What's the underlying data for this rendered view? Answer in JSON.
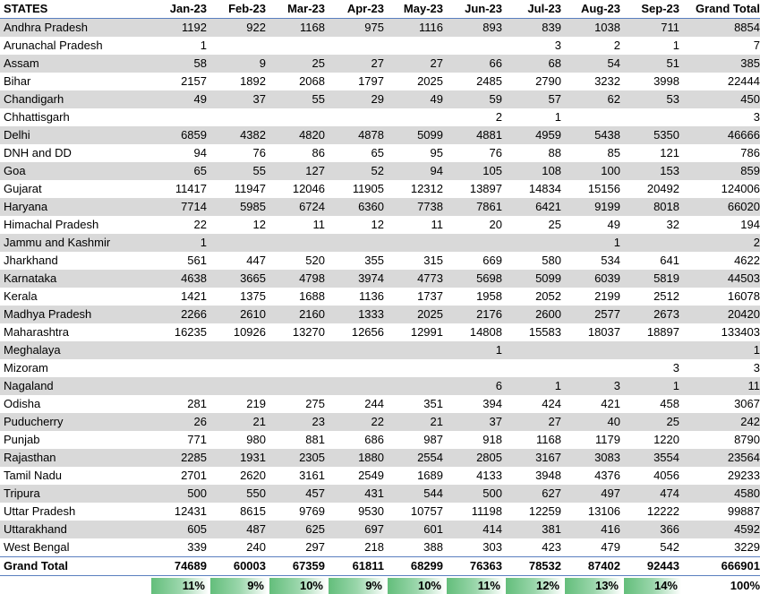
{
  "headers": [
    "STATES",
    "Jan-23",
    "Feb-23",
    "Mar-23",
    "Apr-23",
    "May-23",
    "Jun-23",
    "Jul-23",
    "Aug-23",
    "Sep-23",
    "Grand Total"
  ],
  "rows": [
    [
      "Andhra Pradesh",
      "1192",
      "922",
      "1168",
      "975",
      "1116",
      "893",
      "839",
      "1038",
      "711",
      "8854"
    ],
    [
      "Arunachal Pradesh",
      "1",
      "",
      "",
      "",
      "",
      "",
      "3",
      "2",
      "1",
      "7"
    ],
    [
      "Assam",
      "58",
      "9",
      "25",
      "27",
      "27",
      "66",
      "68",
      "54",
      "51",
      "385"
    ],
    [
      "Bihar",
      "2157",
      "1892",
      "2068",
      "1797",
      "2025",
      "2485",
      "2790",
      "3232",
      "3998",
      "22444"
    ],
    [
      "Chandigarh",
      "49",
      "37",
      "55",
      "29",
      "49",
      "59",
      "57",
      "62",
      "53",
      "450"
    ],
    [
      "Chhattisgarh",
      "",
      "",
      "",
      "",
      "",
      "2",
      "1",
      "",
      "",
      "3"
    ],
    [
      "Delhi",
      "6859",
      "4382",
      "4820",
      "4878",
      "5099",
      "4881",
      "4959",
      "5438",
      "5350",
      "46666"
    ],
    [
      "DNH and DD",
      "94",
      "76",
      "86",
      "65",
      "95",
      "76",
      "88",
      "85",
      "121",
      "786"
    ],
    [
      "Goa",
      "65",
      "55",
      "127",
      "52",
      "94",
      "105",
      "108",
      "100",
      "153",
      "859"
    ],
    [
      "Gujarat",
      "11417",
      "11947",
      "12046",
      "11905",
      "12312",
      "13897",
      "14834",
      "15156",
      "20492",
      "124006"
    ],
    [
      "Haryana",
      "7714",
      "5985",
      "6724",
      "6360",
      "7738",
      "7861",
      "6421",
      "9199",
      "8018",
      "66020"
    ],
    [
      "Himachal Pradesh",
      "22",
      "12",
      "11",
      "12",
      "11",
      "20",
      "25",
      "49",
      "32",
      "194"
    ],
    [
      "Jammu and Kashmir",
      "1",
      "",
      "",
      "",
      "",
      "",
      "",
      "1",
      "",
      "2"
    ],
    [
      "Jharkhand",
      "561",
      "447",
      "520",
      "355",
      "315",
      "669",
      "580",
      "534",
      "641",
      "4622"
    ],
    [
      "Karnataka",
      "4638",
      "3665",
      "4798",
      "3974",
      "4773",
      "5698",
      "5099",
      "6039",
      "5819",
      "44503"
    ],
    [
      "Kerala",
      "1421",
      "1375",
      "1688",
      "1136",
      "1737",
      "1958",
      "2052",
      "2199",
      "2512",
      "16078"
    ],
    [
      "Madhya Pradesh",
      "2266",
      "2610",
      "2160",
      "1333",
      "2025",
      "2176",
      "2600",
      "2577",
      "2673",
      "20420"
    ],
    [
      "Maharashtra",
      "16235",
      "10926",
      "13270",
      "12656",
      "12991",
      "14808",
      "15583",
      "18037",
      "18897",
      "133403"
    ],
    [
      "Meghalaya",
      "",
      "",
      "",
      "",
      "",
      "1",
      "",
      "",
      "",
      "1"
    ],
    [
      "Mizoram",
      "",
      "",
      "",
      "",
      "",
      "",
      "",
      "",
      "3",
      "3"
    ],
    [
      "Nagaland",
      "",
      "",
      "",
      "",
      "",
      "6",
      "1",
      "3",
      "1",
      "11"
    ],
    [
      "Odisha",
      "281",
      "219",
      "275",
      "244",
      "351",
      "394",
      "424",
      "421",
      "458",
      "3067"
    ],
    [
      "Puducherry",
      "26",
      "21",
      "23",
      "22",
      "21",
      "37",
      "27",
      "40",
      "25",
      "242"
    ],
    [
      "Punjab",
      "771",
      "980",
      "881",
      "686",
      "987",
      "918",
      "1168",
      "1179",
      "1220",
      "8790"
    ],
    [
      "Rajasthan",
      "2285",
      "1931",
      "2305",
      "1880",
      "2554",
      "2805",
      "3167",
      "3083",
      "3554",
      "23564"
    ],
    [
      "Tamil Nadu",
      "2701",
      "2620",
      "3161",
      "2549",
      "1689",
      "4133",
      "3948",
      "4376",
      "4056",
      "29233"
    ],
    [
      "Tripura",
      "500",
      "550",
      "457",
      "431",
      "544",
      "500",
      "627",
      "497",
      "474",
      "4580"
    ],
    [
      "Uttar Pradesh",
      "12431",
      "8615",
      "9769",
      "9530",
      "10757",
      "11198",
      "12259",
      "13106",
      "12222",
      "99887"
    ],
    [
      "Uttarakhand",
      "605",
      "487",
      "625",
      "697",
      "601",
      "414",
      "381",
      "416",
      "366",
      "4592"
    ],
    [
      "West Bengal",
      "339",
      "240",
      "297",
      "218",
      "388",
      "303",
      "423",
      "479",
      "542",
      "3229"
    ]
  ],
  "total": [
    "Grand Total",
    "74689",
    "60003",
    "67359",
    "61811",
    "68299",
    "76363",
    "78532",
    "87402",
    "92443",
    "666901"
  ],
  "percentages": [
    "11%",
    "9%",
    "10%",
    "9%",
    "10%",
    "11%",
    "12%",
    "13%",
    "14%",
    "100%"
  ],
  "colors": {
    "band": "#d9d9d9",
    "border": "#5a7fbf",
    "bar_green": "#63be7b"
  }
}
